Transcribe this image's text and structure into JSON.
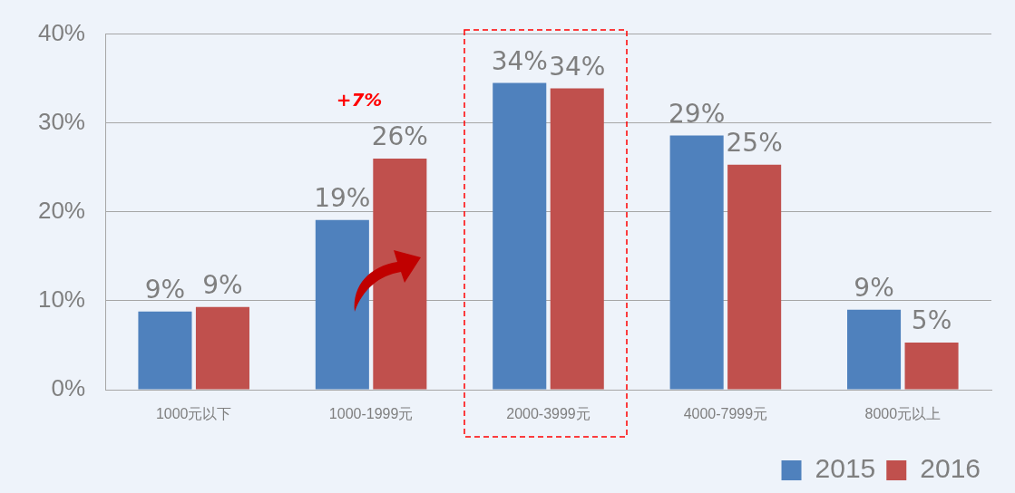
{
  "chart_data": {
    "type": "bar",
    "categories": [
      "1000元以下",
      "1000-1999元",
      "2000-3999元",
      "4000-7999元",
      "8000元以上"
    ],
    "series": [
      {
        "name": "2015",
        "color": "#4f81bd",
        "values": [
          8.8,
          19.1,
          34.5,
          28.6,
          9.0
        ],
        "value_labels": [
          "9%",
          "19%",
          "34%",
          "29%",
          "9%"
        ]
      },
      {
        "name": "2016",
        "color": "#c0504d",
        "values": [
          9.3,
          26.0,
          33.9,
          25.3,
          5.3
        ],
        "value_labels": [
          "9%",
          "26%",
          "34%",
          "25%",
          "5%"
        ]
      }
    ],
    "ylim": [
      0,
      40
    ],
    "yticks": [
      {
        "value": 0,
        "label": "0%"
      },
      {
        "value": 10,
        "label": "10%"
      },
      {
        "value": 20,
        "label": "20%"
      },
      {
        "value": 30,
        "label": "30%"
      },
      {
        "value": 40,
        "label": "40%"
      }
    ],
    "grid": "y",
    "legend": "bottom right",
    "annotations": [
      "+7%"
    ]
  }
}
